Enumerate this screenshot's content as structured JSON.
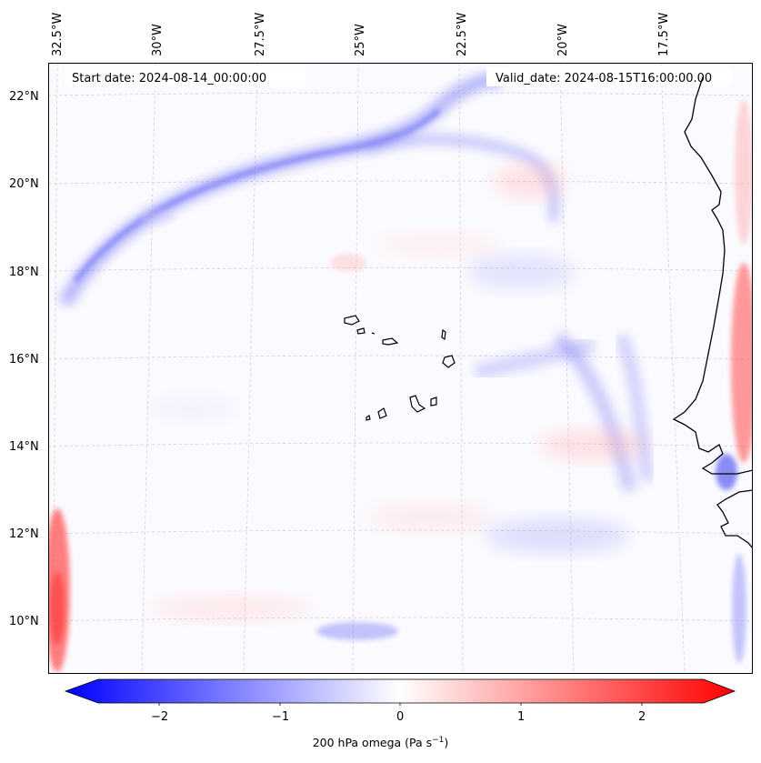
{
  "map": {
    "start_label": "Start date: 2024-08-14_00:00:00",
    "valid_label": "Valid_date: 2024-08-15T16:00:00.00",
    "lon_labels": [
      "32.5°W",
      "30°W",
      "27.5°W",
      "25°W",
      "22.5°W",
      "20°W",
      "17.5°W"
    ],
    "lat_labels": [
      "22°N",
      "20°N",
      "18°N",
      "16°N",
      "14°N",
      "12°N",
      "10°N"
    ]
  },
  "colorbar": {
    "ticks": [
      "−2",
      "−1",
      "0",
      "1",
      "2"
    ],
    "title": "200 hPa omega (Pa s",
    "title_sup": "−1",
    "title_close": ")",
    "colors": {
      "min": "#0000ff",
      "mid": "#ffffff",
      "max": "#ff0000"
    }
  }
}
